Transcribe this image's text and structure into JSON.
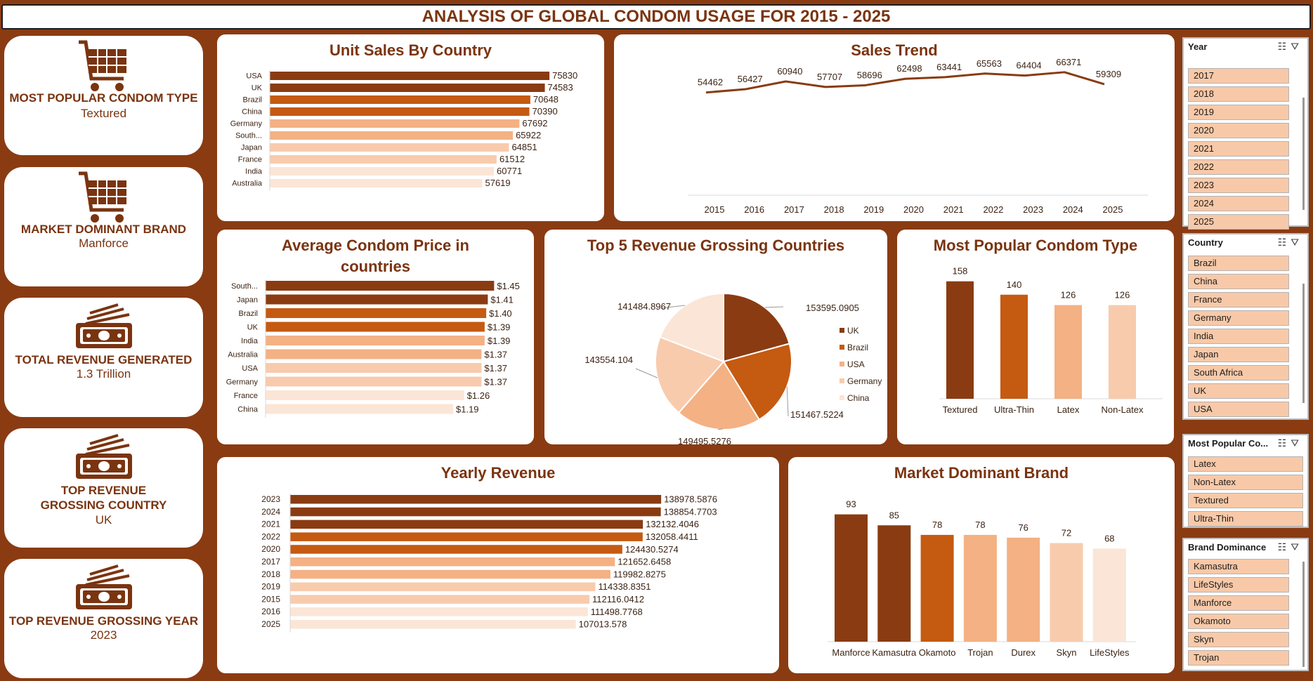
{
  "header": {
    "title": "ANALYSIS OF GLOBAL CONDOM USAGE FOR 2015 - 2025"
  },
  "kpis": [
    {
      "title": "MOST POPULAR CONDOM TYPE",
      "value": "Textured",
      "icon": "shopping-cart-icon"
    },
    {
      "title": "MARKET DOMINANT BRAND",
      "value": "Manforce",
      "icon": "shopping-cart-icon"
    },
    {
      "title": "TOTAL REVENUE GENERATED",
      "value": "1.3 Trillion",
      "icon": "cash-icon"
    },
    {
      "title": "TOP REVENUE GROSSING COUNTRY",
      "value": "UK",
      "icon": "cash-icon"
    },
    {
      "title": "TOP REVENUE GROSSING YEAR",
      "value": "2023",
      "icon": "cash-icon"
    }
  ],
  "colors": {
    "background": "#8A3B12",
    "title_text": "#7a3410",
    "shades": [
      "#8A3B12",
      "#C55A11",
      "#F4B183",
      "#F8CBAD",
      "#FBE5D6"
    ],
    "slicer_item": "#F8C9A8"
  },
  "chart_data": [
    {
      "id": "unit_sales",
      "type": "bar",
      "orientation": "horizontal",
      "title": "Unit Sales By Country",
      "categories": [
        "USA",
        "UK",
        "Brazil",
        "China",
        "Germany",
        "South...",
        "Japan",
        "France",
        "India",
        "Australia"
      ],
      "values": [
        75830,
        74583,
        70648,
        70390,
        67692,
        65922,
        64851,
        61512,
        60771,
        57619
      ],
      "labels": [
        "75830",
        "74583",
        "70648",
        "70390",
        "67692",
        "65922",
        "64851",
        "61512",
        "60771",
        "57619"
      ],
      "xlim": [
        0,
        80000
      ]
    },
    {
      "id": "sales_trend",
      "type": "line",
      "title": "Sales Trend",
      "categories": [
        "2015",
        "2016",
        "2017",
        "2018",
        "2019",
        "2020",
        "2021",
        "2022",
        "2023",
        "2024",
        "2025"
      ],
      "values": [
        54462,
        56427,
        60940,
        57707,
        58696,
        62498,
        63441,
        65563,
        64404,
        66371,
        59309
      ],
      "ylim": [
        0,
        70000
      ]
    },
    {
      "id": "avg_price",
      "type": "bar",
      "orientation": "horizontal",
      "title": "Average Condom Price in countries",
      "categories": [
        "South...",
        "Japan",
        "Brazil",
        "UK",
        "India",
        "Australia",
        "USA",
        "Germany",
        "France",
        "China"
      ],
      "values": [
        1.45,
        1.41,
        1.4,
        1.39,
        1.39,
        1.37,
        1.37,
        1.37,
        1.26,
        1.19
      ],
      "labels": [
        "$1.45",
        "$1.41",
        "$1.40",
        "$1.39",
        "$1.39",
        "$1.37",
        "$1.37",
        "$1.37",
        "$1.26",
        "$1.19"
      ],
      "xlim": [
        0,
        1.6
      ]
    },
    {
      "id": "top5_revenue",
      "type": "pie",
      "title": "Top 5 Revenue Grossing Countries",
      "categories": [
        "UK",
        "Brazil",
        "USA",
        "Germany",
        "China"
      ],
      "values": [
        153595.0905,
        151467.5224,
        149495.5276,
        143554.104,
        141484.8967
      ],
      "labels": [
        "153595.0905",
        "151467.5224",
        "149495.5276",
        "143554.104",
        "141484.8967"
      ],
      "legend": "right"
    },
    {
      "id": "popular_type",
      "type": "bar",
      "title": "Most Popular Condom Type",
      "categories": [
        "Textured",
        "Ultra-Thin",
        "Latex",
        "Non-Latex"
      ],
      "values": [
        158,
        140,
        126,
        126
      ],
      "ylim": [
        0,
        170
      ]
    },
    {
      "id": "yearly_revenue",
      "type": "bar",
      "orientation": "horizontal",
      "title": "Yearly Revenue",
      "categories": [
        "2023",
        "2024",
        "2021",
        "2022",
        "2020",
        "2017",
        "2018",
        "2019",
        "2015",
        "2016",
        "2025"
      ],
      "values": [
        138978.5876,
        138854.7703,
        132132.4046,
        132058.4411,
        124430.5274,
        121652.6458,
        119982.8275,
        114338.8351,
        112116.0412,
        111498.7768,
        107013.578
      ],
      "labels": [
        "138978.5876",
        "138854.7703",
        "132132.4046",
        "132058.4411",
        "124430.5274",
        "121652.6458",
        "119982.8275",
        "114338.8351",
        "112116.0412",
        "111498.7768",
        "107013.578"
      ],
      "xlim": [
        0,
        150000
      ]
    },
    {
      "id": "dominant_brand",
      "type": "bar",
      "title": "Market Dominant Brand",
      "categories": [
        "Manforce",
        "Kamasutra",
        "Okamoto",
        "Trojan",
        "Durex",
        "Skyn",
        "LifeStyles"
      ],
      "values": [
        93,
        85,
        78,
        78,
        76,
        72,
        68
      ],
      "ylim": [
        0,
        100
      ]
    }
  ],
  "slicers": [
    {
      "title": "Year",
      "items": [
        "2017",
        "2018",
        "2019",
        "2020",
        "2021",
        "2022",
        "2023",
        "2024",
        "2025"
      ]
    },
    {
      "title": "Country",
      "items": [
        "Brazil",
        "China",
        "France",
        "Germany",
        "India",
        "Japan",
        "South Africa",
        "UK",
        "USA"
      ]
    },
    {
      "title": "Most Popular Co...",
      "items": [
        "Latex",
        "Non-Latex",
        "Textured",
        "Ultra-Thin"
      ]
    },
    {
      "title": "Brand Dominance",
      "items": [
        "Kamasutra",
        "LifeStyles",
        "Manforce",
        "Okamoto",
        "Skyn",
        "Trojan"
      ]
    }
  ]
}
